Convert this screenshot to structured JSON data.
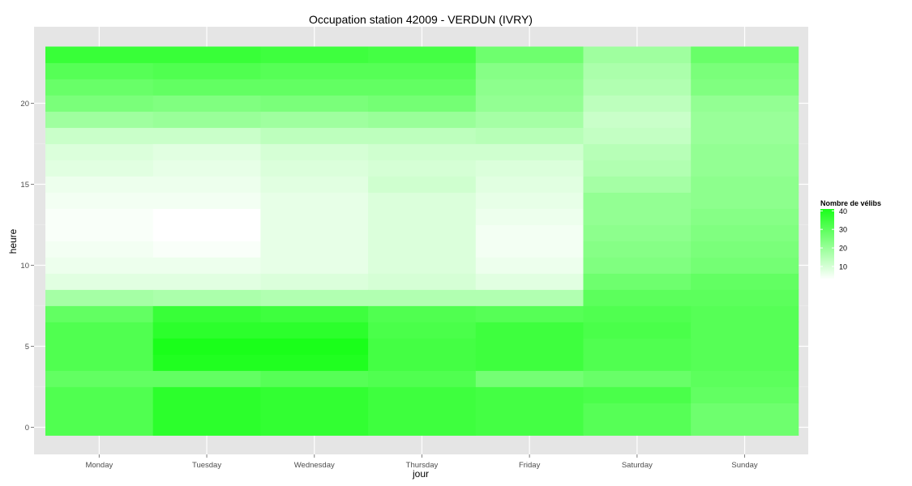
{
  "chart_data": {
    "type": "heatmap",
    "title": "Occupation station 42009 - VERDUN (IVRY)",
    "xlabel": "jour",
    "ylabel": "heure",
    "x_categories": [
      "Monday",
      "Tuesday",
      "Wednesday",
      "Thursday",
      "Friday",
      "Saturday",
      "Sunday"
    ],
    "y_values": [
      0,
      1,
      2,
      3,
      4,
      5,
      6,
      7,
      8,
      9,
      10,
      11,
      12,
      13,
      14,
      15,
      16,
      17,
      18,
      19,
      20,
      21,
      22,
      23
    ],
    "y_ticks": [
      0,
      5,
      10,
      15,
      20
    ],
    "ylim": [
      -0.5,
      23.5
    ],
    "grid": true,
    "background": "#e5e5e5",
    "legend": {
      "title": "Nombre de vélibs",
      "position": "right",
      "ticks": [
        10,
        20,
        30,
        40
      ],
      "min": 3,
      "max": 41,
      "low_color": "#ffffff",
      "high_color": "#1aff1a"
    },
    "values": {
      "Monday": [
        32,
        32,
        32,
        29,
        32,
        32,
        32,
        29,
        18,
        8,
        6,
        5,
        4,
        4,
        5,
        6,
        8,
        9,
        12,
        19,
        25,
        28,
        31,
        36
      ],
      "Tuesday": [
        38,
        38,
        38,
        29,
        40,
        41,
        38,
        36,
        17,
        8,
        6,
        4,
        3,
        3,
        5,
        6,
        7,
        8,
        12,
        20,
        24,
        29,
        32,
        36
      ],
      "Wednesday": [
        37,
        37,
        37,
        31,
        40,
        41,
        38,
        35,
        16,
        9,
        7,
        7,
        7,
        7,
        7,
        8,
        9,
        10,
        14,
        19,
        25,
        29,
        31,
        35
      ],
      "Thursday": [
        35,
        35,
        35,
        32,
        34,
        34,
        33,
        32,
        16,
        10,
        9,
        9,
        9,
        9,
        9,
        11,
        10,
        11,
        14,
        20,
        26,
        29,
        31,
        34
      ],
      "Friday": [
        34,
        34,
        34,
        26,
        35,
        35,
        35,
        31,
        16,
        8,
        6,
        5,
        5,
        6,
        7,
        8,
        9,
        11,
        15,
        18,
        21,
        22,
        23,
        27
      ],
      "Saturday": [
        31,
        31,
        33,
        28,
        32,
        32,
        33,
        32,
        30,
        27,
        24,
        23,
        22,
        21,
        21,
        18,
        16,
        15,
        13,
        12,
        14,
        16,
        17,
        19
      ],
      "Sunday": [
        27,
        27,
        29,
        30,
        31,
        31,
        31,
        31,
        30,
        29,
        26,
        25,
        24,
        23,
        22,
        22,
        21,
        21,
        20,
        20,
        21,
        24,
        25,
        28
      ]
    }
  }
}
